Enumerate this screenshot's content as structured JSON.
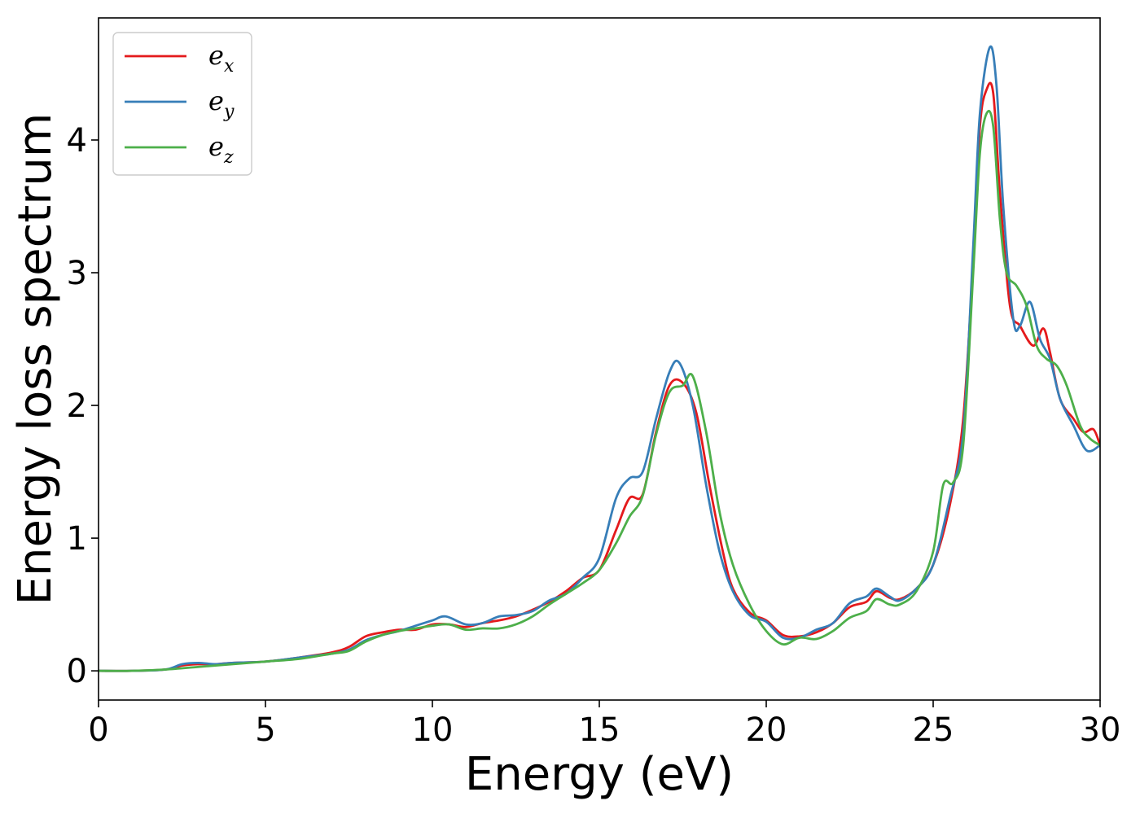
{
  "chart_data": {
    "type": "line",
    "title": "",
    "xlabel": "Energy (eV)",
    "ylabel": "Energy loss spectrum",
    "xlim": [
      0,
      30
    ],
    "ylim": [
      -0.22,
      4.92
    ],
    "xticks": [
      0,
      5,
      10,
      15,
      20,
      25,
      30
    ],
    "yticks": [
      0,
      1,
      2,
      3,
      4
    ],
    "grid": false,
    "legend_position": "top-left",
    "series": [
      {
        "name": "e",
        "subscript": "x",
        "color": "#e41a1c",
        "points": [
          [
            0,
            0.0
          ],
          [
            1,
            0.0
          ],
          [
            2,
            0.01
          ],
          [
            2.5,
            0.04
          ],
          [
            3,
            0.05
          ],
          [
            3.5,
            0.05
          ],
          [
            4,
            0.06
          ],
          [
            5,
            0.07
          ],
          [
            6,
            0.1
          ],
          [
            7,
            0.14
          ],
          [
            7.5,
            0.18
          ],
          [
            8,
            0.26
          ],
          [
            8.5,
            0.29
          ],
          [
            9,
            0.31
          ],
          [
            9.5,
            0.31
          ],
          [
            10,
            0.35
          ],
          [
            10.5,
            0.35
          ],
          [
            11,
            0.33
          ],
          [
            11.5,
            0.36
          ],
          [
            12,
            0.38
          ],
          [
            12.5,
            0.41
          ],
          [
            13,
            0.46
          ],
          [
            13.5,
            0.52
          ],
          [
            14,
            0.6
          ],
          [
            14.5,
            0.7
          ],
          [
            15,
            0.76
          ],
          [
            15.5,
            1.06
          ],
          [
            15.9,
            1.3
          ],
          [
            16.3,
            1.33
          ],
          [
            16.7,
            1.8
          ],
          [
            17.1,
            2.15
          ],
          [
            17.5,
            2.17
          ],
          [
            17.9,
            1.95
          ],
          [
            18.3,
            1.4
          ],
          [
            18.7,
            0.9
          ],
          [
            19,
            0.62
          ],
          [
            19.5,
            0.44
          ],
          [
            20,
            0.38
          ],
          [
            20.5,
            0.27
          ],
          [
            21,
            0.26
          ],
          [
            21.5,
            0.29
          ],
          [
            22,
            0.36
          ],
          [
            22.5,
            0.48
          ],
          [
            23,
            0.52
          ],
          [
            23.3,
            0.6
          ],
          [
            23.7,
            0.55
          ],
          [
            24,
            0.54
          ],
          [
            24.5,
            0.62
          ],
          [
            25,
            0.8
          ],
          [
            25.5,
            1.25
          ],
          [
            25.9,
            1.9
          ],
          [
            26.2,
            3.1
          ],
          [
            26.4,
            4.1
          ],
          [
            26.6,
            4.38
          ],
          [
            26.8,
            4.35
          ],
          [
            27,
            3.6
          ],
          [
            27.3,
            2.75
          ],
          [
            27.6,
            2.6
          ],
          [
            28,
            2.45
          ],
          [
            28.3,
            2.58
          ],
          [
            28.5,
            2.4
          ],
          [
            28.8,
            2.05
          ],
          [
            29.2,
            1.9
          ],
          [
            29.5,
            1.8
          ],
          [
            29.8,
            1.82
          ],
          [
            30,
            1.7
          ]
        ]
      },
      {
        "name": "e",
        "subscript": "y",
        "color": "#377eb8",
        "points": [
          [
            0,
            0.0
          ],
          [
            1,
            0.0
          ],
          [
            2,
            0.01
          ],
          [
            2.5,
            0.05
          ],
          [
            3,
            0.06
          ],
          [
            3.5,
            0.05
          ],
          [
            4,
            0.06
          ],
          [
            5,
            0.07
          ],
          [
            6,
            0.1
          ],
          [
            7,
            0.13
          ],
          [
            7.5,
            0.16
          ],
          [
            8,
            0.23
          ],
          [
            8.5,
            0.27
          ],
          [
            9,
            0.3
          ],
          [
            9.5,
            0.34
          ],
          [
            10,
            0.38
          ],
          [
            10.4,
            0.41
          ],
          [
            11,
            0.35
          ],
          [
            11.5,
            0.36
          ],
          [
            12,
            0.41
          ],
          [
            12.5,
            0.42
          ],
          [
            13,
            0.45
          ],
          [
            13.5,
            0.53
          ],
          [
            14,
            0.58
          ],
          [
            14.5,
            0.7
          ],
          [
            15,
            0.85
          ],
          [
            15.5,
            1.3
          ],
          [
            15.9,
            1.45
          ],
          [
            16.3,
            1.5
          ],
          [
            16.7,
            1.9
          ],
          [
            17.1,
            2.25
          ],
          [
            17.4,
            2.32
          ],
          [
            17.8,
            2.0
          ],
          [
            18.2,
            1.4
          ],
          [
            18.6,
            0.9
          ],
          [
            19,
            0.6
          ],
          [
            19.5,
            0.42
          ],
          [
            20,
            0.37
          ],
          [
            20.5,
            0.25
          ],
          [
            21,
            0.25
          ],
          [
            21.5,
            0.31
          ],
          [
            22,
            0.36
          ],
          [
            22.5,
            0.51
          ],
          [
            23,
            0.56
          ],
          [
            23.3,
            0.62
          ],
          [
            23.7,
            0.56
          ],
          [
            24,
            0.53
          ],
          [
            24.5,
            0.62
          ],
          [
            25,
            0.8
          ],
          [
            25.5,
            1.3
          ],
          [
            25.9,
            1.8
          ],
          [
            26.2,
            3.2
          ],
          [
            26.4,
            4.2
          ],
          [
            26.7,
            4.7
          ],
          [
            26.9,
            4.4
          ],
          [
            27.1,
            3.5
          ],
          [
            27.4,
            2.65
          ],
          [
            27.6,
            2.6
          ],
          [
            27.9,
            2.78
          ],
          [
            28.2,
            2.5
          ],
          [
            28.5,
            2.35
          ],
          [
            28.8,
            2.05
          ],
          [
            29.2,
            1.85
          ],
          [
            29.6,
            1.66
          ],
          [
            30,
            1.7
          ]
        ]
      },
      {
        "name": "e",
        "subscript": "z",
        "color": "#4daf4a",
        "points": [
          [
            0,
            0.0
          ],
          [
            1,
            0.0
          ],
          [
            2,
            0.01
          ],
          [
            3,
            0.03
          ],
          [
            4,
            0.05
          ],
          [
            5,
            0.07
          ],
          [
            6,
            0.09
          ],
          [
            7,
            0.13
          ],
          [
            7.5,
            0.15
          ],
          [
            8,
            0.22
          ],
          [
            8.5,
            0.27
          ],
          [
            9,
            0.3
          ],
          [
            9.5,
            0.32
          ],
          [
            10,
            0.34
          ],
          [
            10.5,
            0.35
          ],
          [
            11,
            0.31
          ],
          [
            11.5,
            0.32
          ],
          [
            12,
            0.32
          ],
          [
            12.5,
            0.35
          ],
          [
            13,
            0.41
          ],
          [
            13.5,
            0.5
          ],
          [
            14,
            0.58
          ],
          [
            14.5,
            0.66
          ],
          [
            15,
            0.76
          ],
          [
            15.5,
            0.96
          ],
          [
            15.9,
            1.16
          ],
          [
            16.3,
            1.32
          ],
          [
            16.7,
            1.78
          ],
          [
            17.1,
            2.1
          ],
          [
            17.5,
            2.15
          ],
          [
            17.8,
            2.22
          ],
          [
            18.2,
            1.8
          ],
          [
            18.6,
            1.2
          ],
          [
            19,
            0.8
          ],
          [
            19.5,
            0.5
          ],
          [
            20,
            0.3
          ],
          [
            20.5,
            0.2
          ],
          [
            21,
            0.25
          ],
          [
            21.5,
            0.24
          ],
          [
            22,
            0.3
          ],
          [
            22.5,
            0.4
          ],
          [
            23,
            0.45
          ],
          [
            23.3,
            0.54
          ],
          [
            23.7,
            0.5
          ],
          [
            24,
            0.5
          ],
          [
            24.5,
            0.6
          ],
          [
            25,
            0.9
          ],
          [
            25.3,
            1.4
          ],
          [
            25.6,
            1.42
          ],
          [
            25.9,
            1.7
          ],
          [
            26.2,
            3.0
          ],
          [
            26.4,
            3.9
          ],
          [
            26.6,
            4.2
          ],
          [
            26.8,
            4.1
          ],
          [
            27,
            3.4
          ],
          [
            27.2,
            3.0
          ],
          [
            27.5,
            2.9
          ],
          [
            27.8,
            2.75
          ],
          [
            28.1,
            2.45
          ],
          [
            28.4,
            2.35
          ],
          [
            28.7,
            2.3
          ],
          [
            29,
            2.15
          ],
          [
            29.4,
            1.85
          ],
          [
            29.7,
            1.75
          ],
          [
            30,
            1.7
          ]
        ]
      }
    ]
  }
}
